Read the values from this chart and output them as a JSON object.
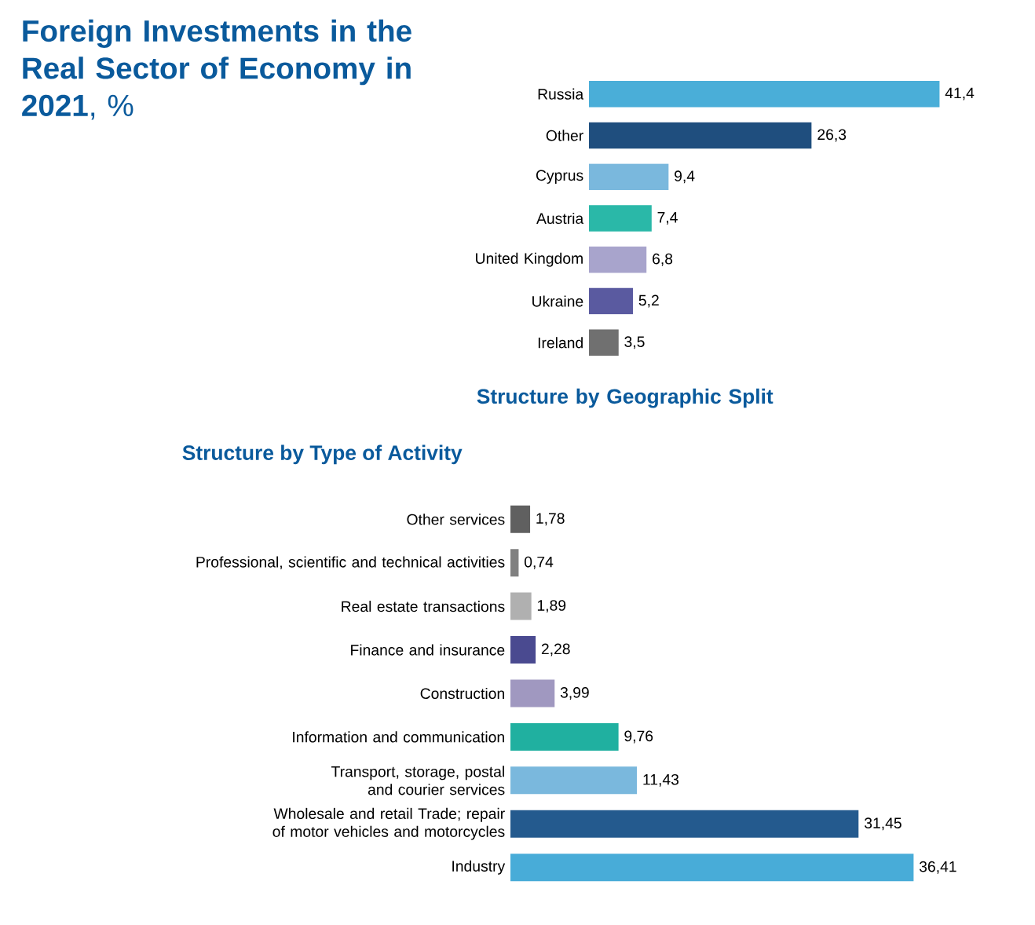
{
  "chart_data": [
    {
      "type": "bar",
      "orientation": "horizontal",
      "title": "**Foreign Investments in the Real Sector of Economy in 2021**, %",
      "subtitle": "Structure by Geographic Split",
      "categories": [
        "Russia",
        "Other",
        "Cyprus",
        "Austria",
        "United Kingdom",
        "Ukraine",
        "Ireland"
      ],
      "values": [
        41.4,
        26.3,
        9.4,
        7.4,
        6.8,
        5.2,
        3.5
      ],
      "value_labels": [
        "41,4",
        "26,3",
        "9,4",
        "7,4",
        "6,8",
        "5,2",
        "3,5"
      ],
      "colors": [
        "#4aaed8",
        "#1f4e7e",
        "#7ab8dd",
        "#2ab8a8",
        "#a8a4cc",
        "#5a5aa0",
        "#707070"
      ]
    },
    {
      "type": "bar",
      "orientation": "horizontal",
      "title": "Structure by Type of Activity",
      "categories": [
        "Other services",
        "Professional, scientific and technical activities",
        "Real estate transactions",
        "Finance and insurance",
        "Construction",
        "Information and communication",
        "Transport, storage, postal and courier services",
        "Wholesale and retail Trade; repair of motor vehicles and motorcycles",
        "Industry"
      ],
      "values": [
        1.78,
        0.74,
        1.89,
        2.28,
        3.99,
        9.76,
        11.43,
        31.45,
        36.41
      ],
      "value_labels": [
        "1,78",
        "0,74",
        "1,89",
        "2,28",
        "3,99",
        "9,76",
        "11,43",
        "31,45",
        "36,41"
      ],
      "colors": [
        "#606060",
        "#808080",
        "#b0b0b0",
        "#4a4a90",
        "#a098c0",
        "#20b0a0",
        "#7ab8dd",
        "#245a8e",
        "#48acd8"
      ]
    }
  ]
}
